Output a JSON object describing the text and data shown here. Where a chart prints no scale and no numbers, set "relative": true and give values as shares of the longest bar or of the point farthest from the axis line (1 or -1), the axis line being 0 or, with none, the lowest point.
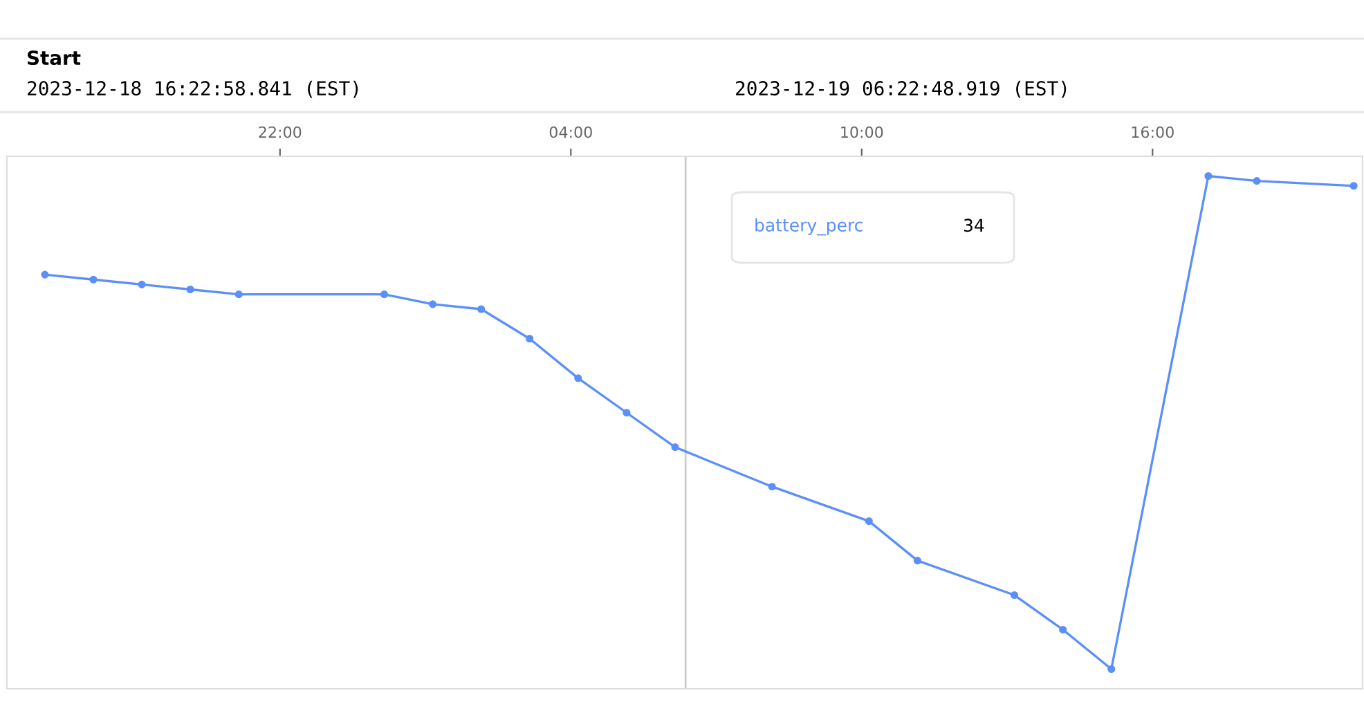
{
  "chart_data": {
    "type": "line",
    "title": "Start",
    "annotations": [
      "2023-12-18 16:22:58.841 (EST)",
      "2023-12-19 06:22:48.919 (EST)",
      "34"
    ],
    "x": [
      "2023-12-18T17:09",
      "2023-12-18T18:09",
      "2023-12-18T19:09",
      "2023-12-18T20:09",
      "2023-12-18T21:09",
      "2023-12-19T00:09",
      "2023-12-19T01:09",
      "2023-12-19T02:09",
      "2023-12-19T03:09",
      "2023-12-19T04:09",
      "2023-12-19T05:09",
      "2023-12-19T06:09",
      "2023-12-19T08:09",
      "2023-12-19T10:09",
      "2023-12-19T11:09",
      "2023-12-19T13:09",
      "2023-12-19T14:09",
      "2023-12-19T15:09",
      "2023-12-19T17:09",
      "2023-12-19T18:09",
      "2023-12-19T20:09"
    ],
    "series": [
      {
        "name": "battery_perc",
        "color": "#5b8ff9",
        "values": [
          0.8,
          0.79,
          0.78,
          0.77,
          0.76,
          0.76,
          0.74,
          0.73,
          0.67,
          0.59,
          0.52,
          0.45,
          0.37,
          0.3,
          0.22,
          0.15,
          0.08,
          0,
          1,
          0.99,
          0.98
        ]
      }
    ],
    "relative": true,
    "xlim": [
      "2023-12-18T16:22",
      "2023-12-19T20:20"
    ],
    "xticks": [
      {
        "value": "2023-12-18T22:00",
        "label": "22:00"
      },
      {
        "value": "2023-12-19T04:00",
        "label": "04:00"
      },
      {
        "value": "2023-12-19T10:00",
        "label": "10:00"
      },
      {
        "value": "2023-12-19T16:00",
        "label": "16:00"
      }
    ],
    "ref_lines": [
      {
        "axis": "x",
        "value": "2023-12-19T06:22",
        "color": "#cccccc"
      }
    ],
    "grid": false,
    "legend": false,
    "marker": "circle",
    "line_style": "solid"
  }
}
